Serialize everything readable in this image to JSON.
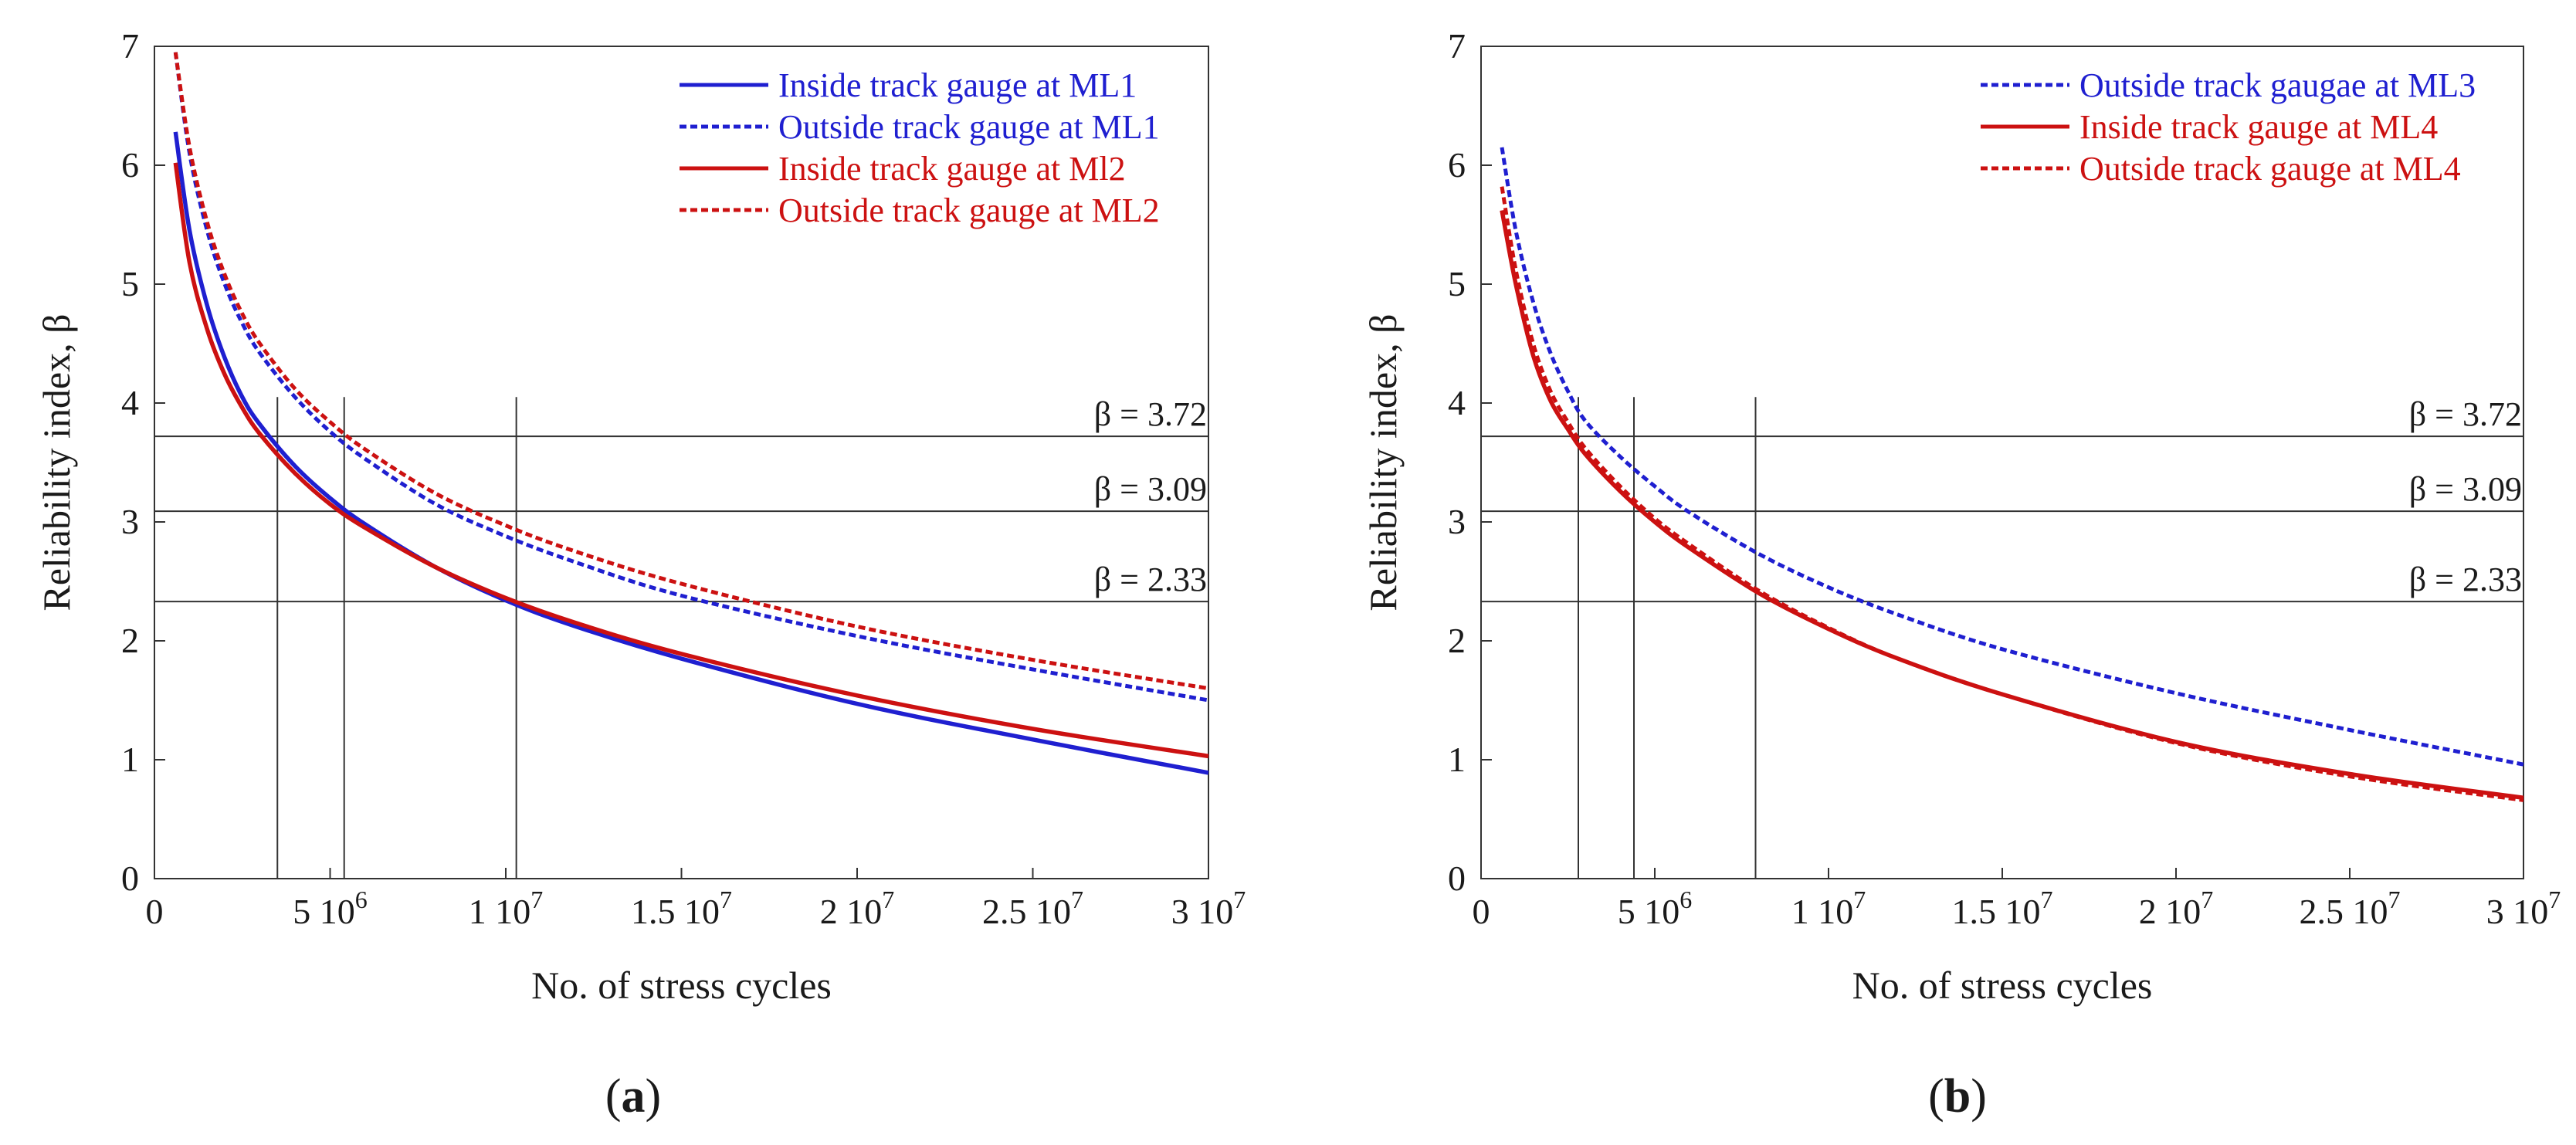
{
  "figure": {
    "colors": {
      "blue": "#1f1fd0",
      "red": "#cc1111",
      "axis": "#333333"
    },
    "panels": [
      {
        "panel_label": "(a)",
        "panel_letter": "a"
      },
      {
        "panel_label": "(b)",
        "panel_letter": "b"
      }
    ]
  },
  "chart_data": [
    {
      "type": "line",
      "title": "",
      "panel": "(a)",
      "xlabel": "No. of stress cycles",
      "ylabel": "Reliability index, β",
      "xlim": [
        0,
        30000000
      ],
      "ylim": [
        0,
        7
      ],
      "x_ticks": [
        {
          "value": 0,
          "label": "0",
          "exp": ""
        },
        {
          "value": 5000000,
          "label": "5 10",
          "exp": "6"
        },
        {
          "value": 10000000,
          "label": "1 10",
          "exp": "7"
        },
        {
          "value": 15000000,
          "label": "1.5 10",
          "exp": "7"
        },
        {
          "value": 20000000,
          "label": "2 10",
          "exp": "7"
        },
        {
          "value": 25000000,
          "label": "2.5 10",
          "exp": "7"
        },
        {
          "value": 30000000,
          "label": "3 10",
          "exp": "7"
        }
      ],
      "y_ticks": [
        0,
        1,
        2,
        3,
        4,
        5,
        6,
        7
      ],
      "thresholds": [
        {
          "beta": 3.72,
          "label": "β = 3.72",
          "cycles": 3500000
        },
        {
          "beta": 3.09,
          "label": "β = 3.09",
          "cycles": 5400000
        },
        {
          "beta": 2.33,
          "label": "β = 2.33",
          "cycles": 10300000
        }
      ],
      "series": [
        {
          "name": "Inside track gauge at ML1",
          "color": "blue",
          "dash": false,
          "x": [
            600000,
            1000000,
            1500000,
            2000000,
            2500000,
            3000000,
            4000000,
            5000000,
            6000000,
            8000000,
            10000000,
            12000000,
            15000000,
            20000000,
            25000000,
            30000000
          ],
          "y": [
            6.28,
            5.45,
            4.82,
            4.38,
            4.05,
            3.82,
            3.47,
            3.2,
            2.98,
            2.62,
            2.34,
            2.12,
            1.85,
            1.47,
            1.17,
            0.89
          ]
        },
        {
          "name": "Outside track gauge at ML1",
          "color": "blue",
          "dash": true,
          "x": [
            600000,
            1000000,
            1500000,
            2000000,
            2500000,
            3000000,
            4000000,
            5000000,
            6000000,
            8000000,
            10000000,
            12000000,
            15000000,
            20000000,
            25000000,
            30000000
          ],
          "y": [
            6.95,
            6.1,
            5.45,
            5.0,
            4.67,
            4.42,
            4.05,
            3.76,
            3.53,
            3.15,
            2.88,
            2.66,
            2.38,
            2.04,
            1.76,
            1.5
          ]
        },
        {
          "name": "Inside track gauge at Ml2",
          "color": "red",
          "dash": false,
          "x": [
            600000,
            1000000,
            1500000,
            2000000,
            2500000,
            3000000,
            4000000,
            5000000,
            6000000,
            8000000,
            10000000,
            12000000,
            15000000,
            20000000,
            25000000,
            30000000
          ],
          "y": [
            6.02,
            5.18,
            4.62,
            4.24,
            3.96,
            3.74,
            3.41,
            3.15,
            2.95,
            2.62,
            2.36,
            2.15,
            1.89,
            1.54,
            1.26,
            1.03
          ]
        },
        {
          "name": "Outside track gauge at ML2",
          "color": "red",
          "dash": true,
          "x": [
            600000,
            1000000,
            1500000,
            2000000,
            2500000,
            3000000,
            4000000,
            5000000,
            6000000,
            8000000,
            10000000,
            12000000,
            15000000,
            20000000,
            25000000,
            30000000
          ],
          "y": [
            6.95,
            6.15,
            5.52,
            5.08,
            4.75,
            4.5,
            4.12,
            3.84,
            3.61,
            3.24,
            2.97,
            2.75,
            2.48,
            2.12,
            1.84,
            1.6
          ]
        }
      ]
    },
    {
      "type": "line",
      "title": "",
      "panel": "(b)",
      "xlabel": "No. of stress cycles",
      "ylabel": "Reliability index, β",
      "xlim": [
        0,
        30000000
      ],
      "ylim": [
        0,
        7
      ],
      "x_ticks": [
        {
          "value": 0,
          "label": "0",
          "exp": ""
        },
        {
          "value": 5000000,
          "label": "5 10",
          "exp": "6"
        },
        {
          "value": 10000000,
          "label": "1 10",
          "exp": "7"
        },
        {
          "value": 15000000,
          "label": "1.5 10",
          "exp": "7"
        },
        {
          "value": 20000000,
          "label": "2 10",
          "exp": "7"
        },
        {
          "value": 25000000,
          "label": "2.5 10",
          "exp": "7"
        },
        {
          "value": 30000000,
          "label": "3 10",
          "exp": "7"
        }
      ],
      "y_ticks": [
        0,
        1,
        2,
        3,
        4,
        5,
        6,
        7
      ],
      "thresholds": [
        {
          "beta": 3.72,
          "label": "β = 3.72",
          "cycles": 2800000
        },
        {
          "beta": 3.09,
          "label": "β = 3.09",
          "cycles": 4400000
        },
        {
          "beta": 2.33,
          "label": "β = 2.33",
          "cycles": 7900000
        }
      ],
      "series": [
        {
          "name": "Outside track gaugae at ML3",
          "color": "blue",
          "dash": true,
          "x": [
            600000,
            1000000,
            1500000,
            2000000,
            2500000,
            3000000,
            4000000,
            5000000,
            6000000,
            8000000,
            10000000,
            12000000,
            15000000,
            20000000,
            25000000,
            30000000
          ],
          "y": [
            6.15,
            5.45,
            4.85,
            4.42,
            4.1,
            3.85,
            3.55,
            3.3,
            3.08,
            2.73,
            2.45,
            2.22,
            1.93,
            1.56,
            1.25,
            0.96
          ]
        },
        {
          "name": "Inside track gauge at ML4",
          "color": "red",
          "dash": false,
          "x": [
            600000,
            1000000,
            1500000,
            2000000,
            2500000,
            3000000,
            4000000,
            5000000,
            6000000,
            8000000,
            10000000,
            12000000,
            15000000,
            20000000,
            25000000,
            30000000
          ],
          "y": [
            5.62,
            5.0,
            4.4,
            4.02,
            3.78,
            3.57,
            3.26,
            3.0,
            2.78,
            2.4,
            2.1,
            1.85,
            1.55,
            1.15,
            0.88,
            0.68
          ]
        },
        {
          "name": "Outside track gauge at ML4",
          "color": "red",
          "dash": true,
          "x": [
            600000,
            1000000,
            1500000,
            2000000,
            2500000,
            3000000,
            4000000,
            5000000,
            6000000,
            8000000,
            10000000,
            12000000,
            15000000,
            20000000,
            25000000,
            30000000
          ],
          "y": [
            5.82,
            5.12,
            4.5,
            4.1,
            3.84,
            3.62,
            3.3,
            3.03,
            2.81,
            2.42,
            2.11,
            1.85,
            1.55,
            1.14,
            0.86,
            0.66
          ]
        }
      ]
    }
  ]
}
